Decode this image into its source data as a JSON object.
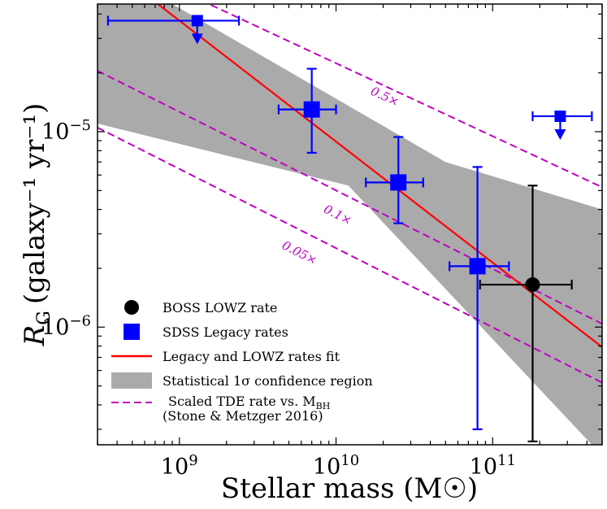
{
  "chart_data": {
    "type": "scatter",
    "xlabel": "Stellar mass (M☉)",
    "ylabel": "R_G (galaxy⁻¹ yr⁻¹)",
    "ylabel_main": "R",
    "ylabel_sub": "G",
    "ylabel_unit": "(galaxy⁻¹ yr⁻¹)",
    "x_scale": "log",
    "y_scale": "log",
    "xlim": [
      300000000.0,
      500000000000.0
    ],
    "ylim": [
      2.5e-07,
      4.5e-05
    ],
    "x_ticks": [
      {
        "value": 1000000000.0,
        "base": "10",
        "exp": "9"
      },
      {
        "value": 10000000000.0,
        "base": "10",
        "exp": "10"
      },
      {
        "value": 100000000000.0,
        "base": "10",
        "exp": "11"
      }
    ],
    "y_ticks": [
      {
        "value": 1e-06,
        "base": "10",
        "exp": "−6"
      },
      {
        "value": 1e-05,
        "base": "10",
        "exp": "−5"
      }
    ],
    "sdss_points": [
      {
        "x": 1300000000.0,
        "y": 3.7e-05,
        "xlo": 350000000.0,
        "xhi": 2400000000.0,
        "upper_limit": true
      },
      {
        "x": 7000000000.0,
        "y": 1.3e-05,
        "xlo": 4300000000.0,
        "xhi": 10000000000.0,
        "ylo": 7.8e-06,
        "yhi": 2.1e-05
      },
      {
        "x": 25000000000.0,
        "y": 5.5e-06,
        "xlo": 15500000000.0,
        "xhi": 36000000000.0,
        "ylo": 3.4e-06,
        "yhi": 9.4e-06
      },
      {
        "x": 80000000000.0,
        "y": 2.05e-06,
        "xlo": 53000000000.0,
        "xhi": 127000000000.0,
        "ylo": 3e-07,
        "yhi": 6.6e-06
      },
      {
        "x": 270000000000.0,
        "y": 1.2e-05,
        "xlo": 180000000000.0,
        "xhi": 430000000000.0,
        "upper_limit": true
      }
    ],
    "boss_point": {
      "x": 180000000000.0,
      "y": 1.65e-06,
      "xlo": 83000000000.0,
      "xhi": 320000000000.0,
      "ylo": 2.6e-07,
      "yhi": 5.3e-06
    },
    "fit_line": {
      "x1": 300000000.0,
      "y1": 7.8e-05,
      "x2": 500000000000.0,
      "y2": 7.9e-07
    },
    "confidence_region": {
      "upper": [
        [
          300000000.0,
          7.5e-05
        ],
        [
          50000000000.0,
          7e-06
        ],
        [
          500000000000.0,
          4e-06
        ]
      ],
      "lower": [
        [
          300000000.0,
          1.1e-05
        ],
        [
          12000000000.0,
          5.3e-06
        ],
        [
          500000000000.0,
          2.2e-07
        ]
      ]
    },
    "scaled_tde_lines": [
      {
        "label": "0.5×",
        "x1": 300000000.0,
        "y1": 8.3e-05,
        "x2": 500000000000.0,
        "y2": 5.2e-06,
        "label_x": 20000000000.0,
        "label_y": 1.45e-05
      },
      {
        "label": "0.1×",
        "x1": 300000000.0,
        "y1": 2.05e-05,
        "x2": 500000000000.0,
        "y2": 1.04e-06,
        "label_x": 10000000000.0,
        "label_y": 3.6e-06
      },
      {
        "label": "0.05×",
        "x1": 300000000.0,
        "y1": 1.05e-05,
        "x2": 500000000000.0,
        "y2": 5.2e-07,
        "label_x": 5700000000.0,
        "label_y": 2.3e-06
      }
    ],
    "colors": {
      "sdss": "#0000ff",
      "boss": "#000000",
      "fit": "#ff0000",
      "region": "#aaaaaa",
      "tde": "#c000c0"
    },
    "legend": {
      "placement": "lower-left",
      "items": [
        {
          "key": "boss",
          "marker": "circle",
          "label": "BOSS LOWZ rate"
        },
        {
          "key": "sdss",
          "marker": "square",
          "label": "SDSS Legacy rates"
        },
        {
          "key": "fit",
          "marker": "line",
          "label": "Legacy and LOWZ rates fit"
        },
        {
          "key": "region",
          "marker": "patch",
          "label": "Statistical 1σ confidence region"
        },
        {
          "key": "tde",
          "marker": "dashed",
          "label": "Scaled TDE rate vs. M",
          "label_sub": "BH",
          "label_line2": "(Stone & Metzger 2016)"
        }
      ]
    }
  }
}
